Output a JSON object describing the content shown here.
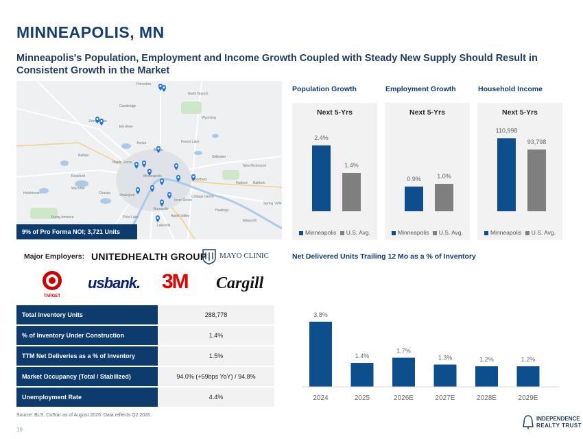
{
  "title": "MINNEAPOLIS, MN",
  "subtitle": "Minneapolis's Population, Employment and Income Growth Coupled with Steady New Supply Should Result in Consistent Growth in the Market",
  "map": {
    "caption": "9% of Pro Forma NOI; 3,721 Units",
    "labels": [
      "Princeton",
      "Cambridge",
      "North Branch",
      "Zimmerman",
      "Elk River",
      "Wyoming",
      "Anoka",
      "Forest Lake",
      "Minneapolis",
      "Stillwater",
      "Woodbury",
      "New Richmond",
      "Shakopee",
      "Burnsville",
      "Apple Valley",
      "Lakeville",
      "Hastings",
      "Prior Lake",
      "Chaska",
      "Waconia",
      "Buffalo",
      "Rockford",
      "Maple Grove",
      "Blaine",
      "Hudson",
      "Baldwin",
      "Spring Valley",
      "Ellsworth",
      "Hutchinson",
      "Cottage Grove",
      "Inver Grove",
      "Young America"
    ],
    "pin_color": "#1a73e8"
  },
  "charts": {
    "population": {
      "section": "Population Growth",
      "period": "Next 5-Yrs",
      "legend": [
        "Minneapolis",
        "U.S. Avg."
      ],
      "chart_data": {
        "type": "bar",
        "categories": [
          "Minneapolis",
          "U.S. Avg."
        ],
        "values": [
          2.4,
          1.4
        ],
        "labels": [
          "2.4%",
          "1.4%"
        ],
        "ylim": [
          0,
          3.0
        ]
      }
    },
    "employment": {
      "section": "Employment Growth",
      "period": "Next 5-Yrs",
      "legend": [
        "Minneapolis",
        "U.S. Avg."
      ],
      "chart_data": {
        "type": "bar",
        "categories": [
          "Minneapolis",
          "U.S. Avg."
        ],
        "values": [
          0.9,
          1.0
        ],
        "labels": [
          "0.9%",
          "1.0%"
        ],
        "ylim": [
          0,
          3.0
        ]
      }
    },
    "income": {
      "section": "Household Income",
      "period": "Next 5-Yrs",
      "legend": [
        "Minneapolis",
        "U.S. Avg."
      ],
      "chart_data": {
        "type": "bar",
        "categories": [
          "Minneapolis",
          "U.S. Avg."
        ],
        "values": [
          110998,
          93798
        ],
        "labels": [
          "110,998",
          "93,798"
        ],
        "ylim": [
          0,
          125000
        ]
      }
    },
    "delivered": {
      "section": "Net Delivered Units Trailing 12 Mo as a % of Inventory",
      "chart_data": {
        "type": "bar",
        "categories": [
          "2024",
          "2025",
          "2026E",
          "2027E",
          "2028E",
          "2029E"
        ],
        "values": [
          3.8,
          1.4,
          1.7,
          1.3,
          1.2,
          1.2
        ],
        "labels": [
          "3.8%",
          "1.4%",
          "1.7%",
          "1.3%",
          "1.2%",
          "1.2%"
        ],
        "ylim": [
          0,
          4.0
        ]
      }
    }
  },
  "colors": {
    "primary": "#0d3b6e",
    "minneapolis_bar": "#0d4f8c",
    "us_bar": "#7f7f7f",
    "delivered_bar": "#0d4f8c"
  },
  "employers": {
    "label": "Major Employers:",
    "unitedhealth": "UNITEDHEALTH GROUP",
    "mayo": "MAYO CLINIC",
    "target": "TARGET",
    "usbank": "usbank.",
    "threem": "3M",
    "cargill": "Cargill"
  },
  "stats": [
    {
      "label": "Total Inventory Units",
      "value": "288,778"
    },
    {
      "label": "% of Inventory Under Construction",
      "value": "1.4%"
    },
    {
      "label": "TTM Net Deliveries as a % of Inventory",
      "value": "1.5%"
    },
    {
      "label": "Market Occupancy (Total / Stabilized)",
      "value": "94.0% (+59bps YoY) / 94.8%"
    },
    {
      "label": "Unemployment Rate",
      "value": "4.4%"
    }
  ],
  "source": "Source: BLS, CoStar as of August 2026. Data reflects Q2 2026.",
  "page_number": "19",
  "brand": {
    "line1": "INDEPENDENCE",
    "line2": "REALTY TRUST"
  }
}
